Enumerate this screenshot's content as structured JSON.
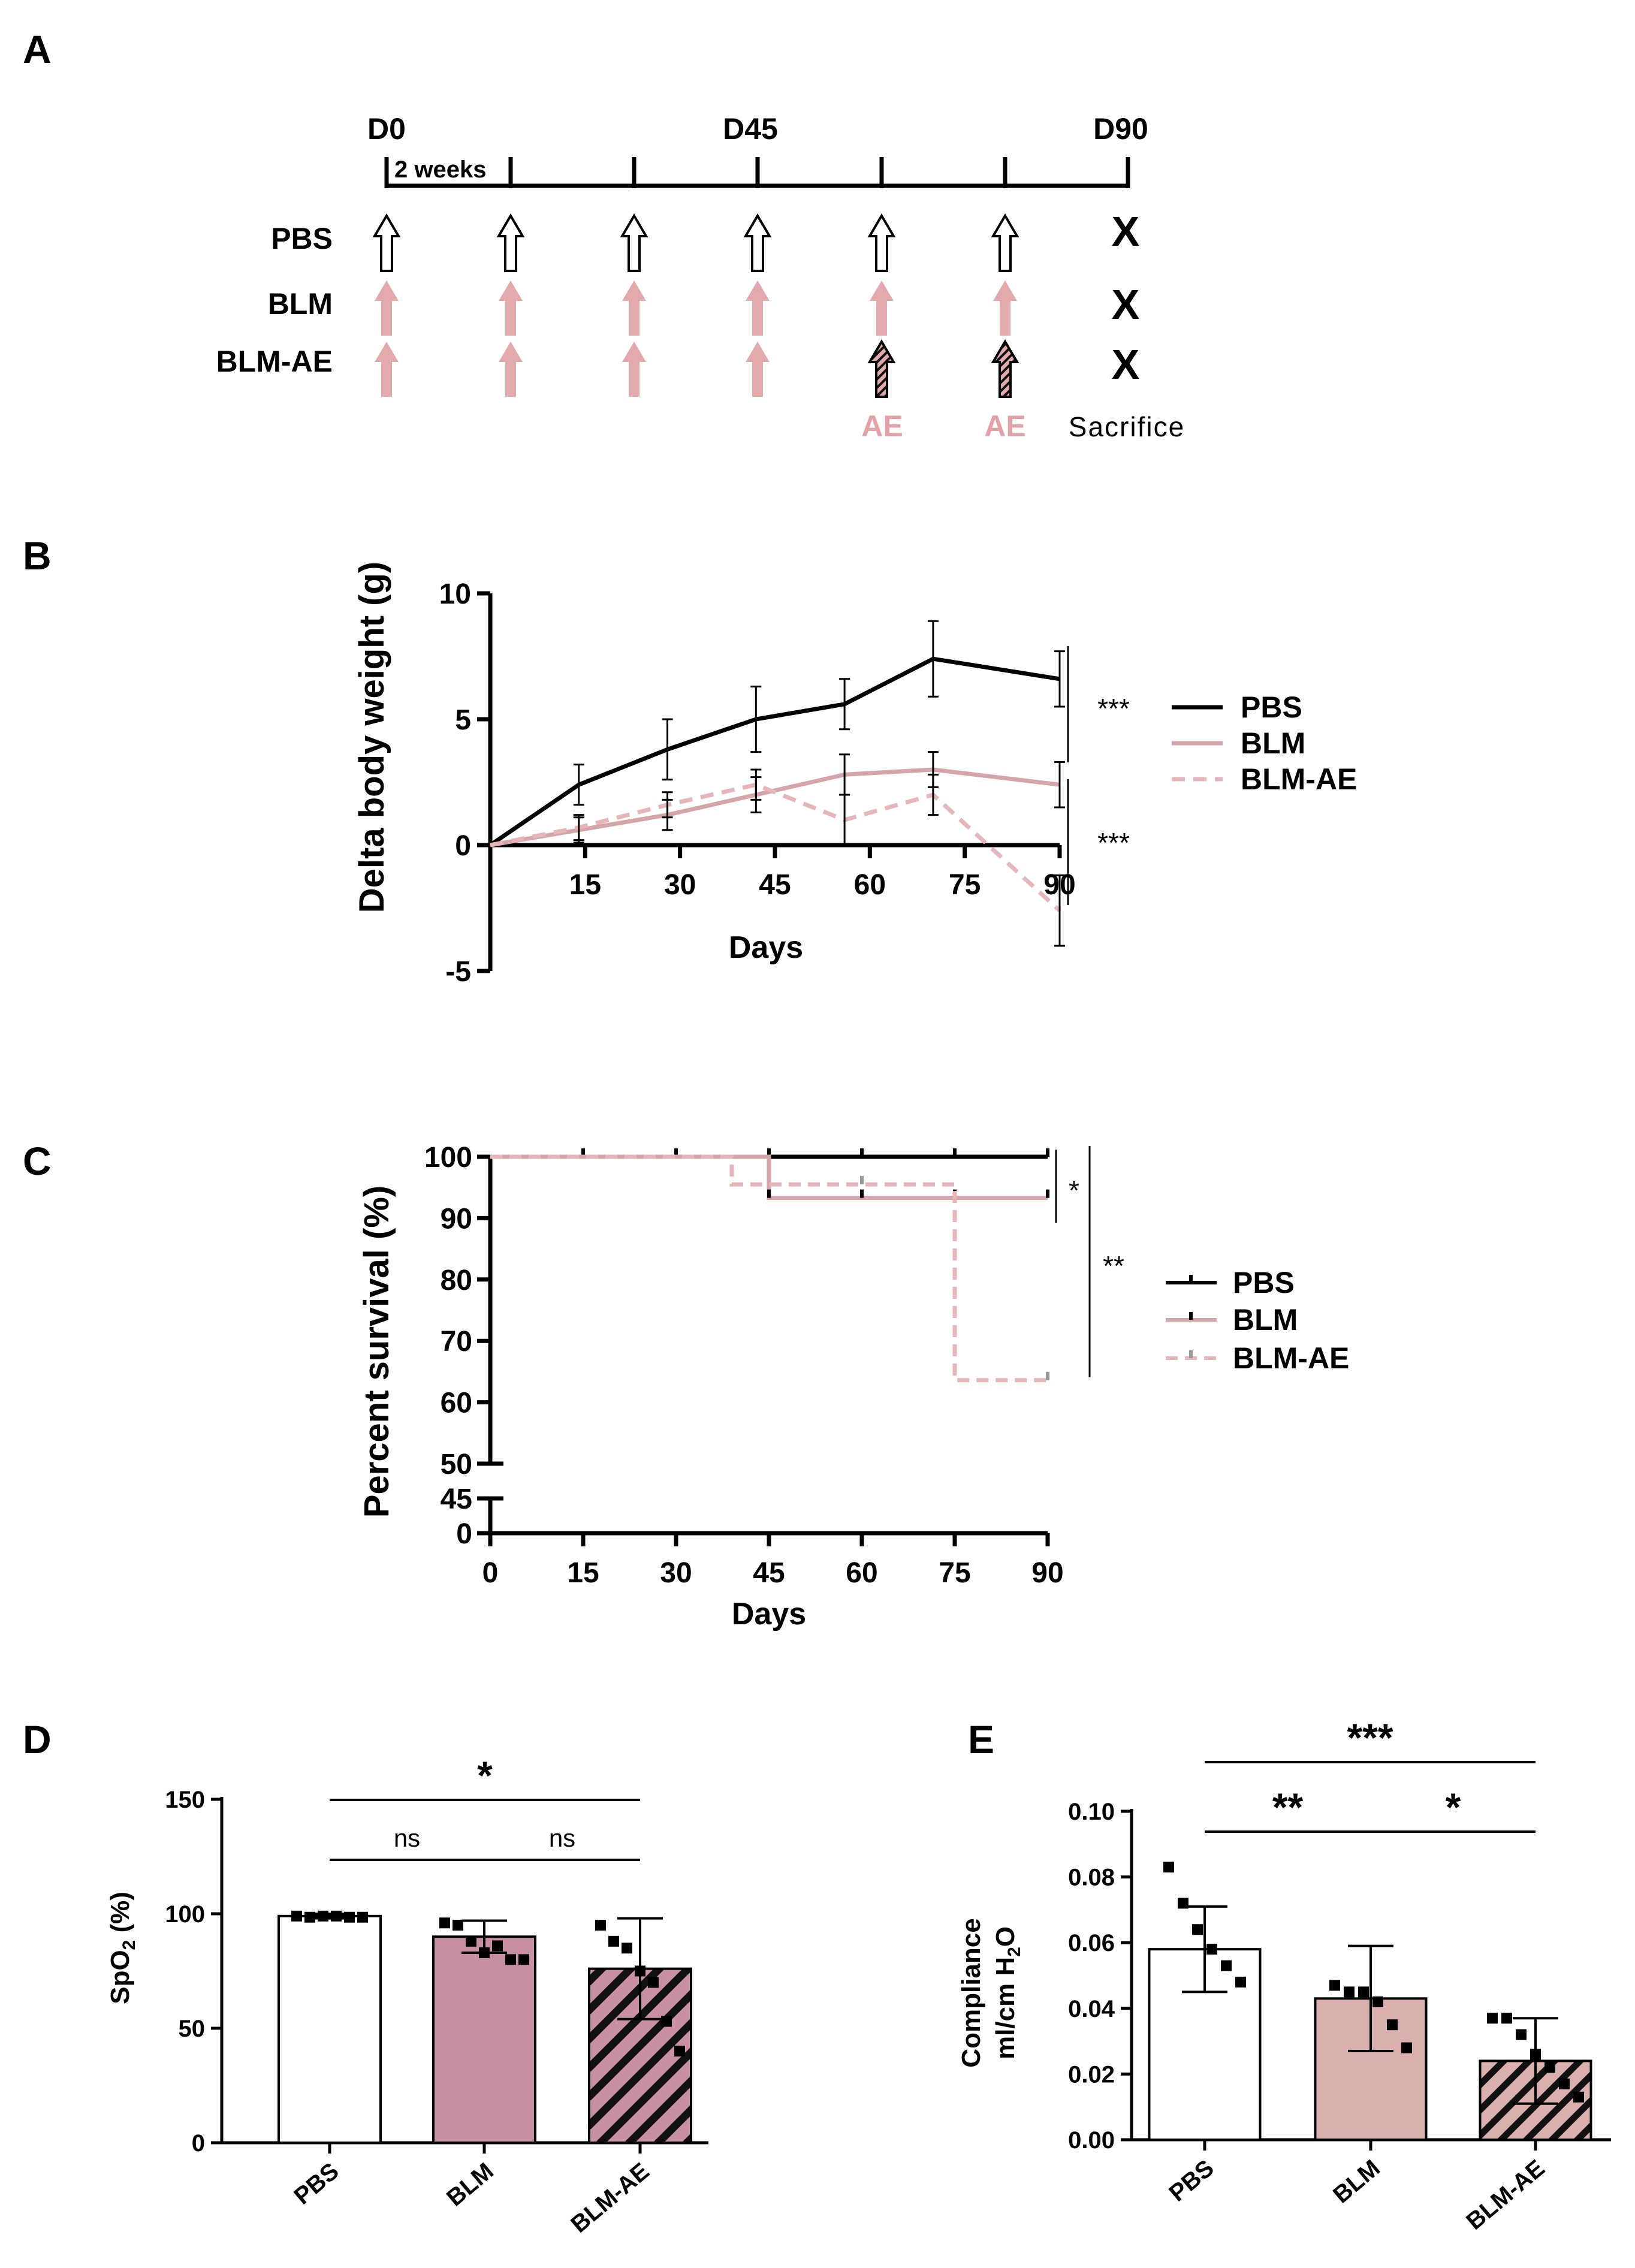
{
  "colors": {
    "pbs": "#000000",
    "blm": "#d6a5a9",
    "blm_ae": "#e6b6b8",
    "blm_bar": "#c98fa3",
    "blm_bar_e": "#d9b0ae",
    "ae_text": "#e2a2a8",
    "arrow_fill": "#e3aaad",
    "tick_grey": "#999999"
  },
  "panels": {
    "a": {
      "label": "A"
    },
    "b": {
      "label": "B"
    },
    "c": {
      "label": "C"
    },
    "d": {
      "label": "D"
    },
    "e": {
      "label": "E"
    }
  },
  "timeline": {
    "day_labels": [
      "D0",
      "D45",
      "D90"
    ],
    "interval_label": "2 weeks",
    "groups": [
      "PBS",
      "BLM",
      "BLM-AE"
    ],
    "ae_label": "AE",
    "sacrifice_label": "Sacrifice",
    "sacrifice_mark": "X"
  },
  "chart_data": [
    {
      "panel": "B",
      "type": "line",
      "xlabel": "Days",
      "ylabel": "Delta body weight  (g)",
      "xlim": [
        0,
        90
      ],
      "ylim": [
        -5,
        10
      ],
      "xticks": [
        15,
        30,
        45,
        60,
        75,
        90
      ],
      "yticks": [
        -5,
        0,
        5,
        10
      ],
      "x": [
        0,
        14,
        28,
        42,
        56,
        70,
        90
      ],
      "series": [
        {
          "name": "PBS",
          "style": "solid",
          "values": [
            0,
            2.4,
            3.8,
            5.0,
            5.6,
            7.4,
            6.6
          ],
          "errors": [
            0,
            0.8,
            1.2,
            1.3,
            1.0,
            1.5,
            1.1
          ]
        },
        {
          "name": "BLM",
          "style": "solid",
          "values": [
            0,
            0.6,
            1.2,
            2.0,
            2.8,
            3.0,
            2.4
          ],
          "errors": [
            0,
            0.5,
            0.6,
            0.7,
            0.8,
            0.7,
            0.9
          ]
        },
        {
          "name": "BLM-AE",
          "style": "dashed",
          "values": [
            0,
            0.7,
            1.6,
            2.4,
            1.0,
            2.0,
            -2.6
          ],
          "errors": [
            0,
            0.5,
            0.5,
            0.6,
            1.0,
            0.8,
            1.4
          ]
        }
      ],
      "significance": [
        "***",
        "***"
      ]
    },
    {
      "panel": "C",
      "type": "line",
      "xlabel": "Days",
      "ylabel": "Percent survival (%)",
      "xlim": [
        0,
        90
      ],
      "xticks": [
        0,
        15,
        30,
        45,
        60,
        75,
        90
      ],
      "yticks": [
        0,
        45,
        50,
        60,
        70,
        80,
        90,
        100
      ],
      "ylim_upper": [
        50,
        100
      ],
      "ylim_lower": [
        0,
        45
      ],
      "series": [
        {
          "name": "PBS",
          "style": "solid",
          "steps": [
            [
              0,
              100
            ],
            [
              90,
              100
            ]
          ],
          "censor_x": [
            15,
            30,
            45,
            60,
            75,
            90
          ]
        },
        {
          "name": "BLM",
          "style": "solid",
          "steps": [
            [
              0,
              100
            ],
            [
              45,
              100
            ],
            [
              45,
              93.3
            ],
            [
              90,
              93.3
            ]
          ],
          "censor_x": [
            45,
            60,
            75,
            90
          ]
        },
        {
          "name": "BLM-AE",
          "style": "dashed",
          "steps": [
            [
              0,
              100
            ],
            [
              39,
              100
            ],
            [
              39,
              95.5
            ],
            [
              75,
              95.5
            ],
            [
              75,
              63.6
            ],
            [
              90,
              63.6
            ]
          ],
          "censor_x": [
            60,
            90
          ]
        }
      ],
      "significance": [
        "*",
        "**"
      ]
    },
    {
      "panel": "D",
      "type": "bar",
      "ylabel": "SpO",
      "ylabel_sub": "2",
      "ylabel_unit": " (%)",
      "ylim": [
        0,
        150
      ],
      "yticks": [
        0,
        50,
        100,
        150
      ],
      "categories": [
        "PBS",
        "BLM",
        "BLM-AE"
      ],
      "values": [
        99,
        90,
        76
      ],
      "errors": [
        1,
        7,
        22
      ],
      "points": [
        [
          99,
          98.5,
          99,
          99,
          98.5,
          98.5
        ],
        [
          96,
          95,
          88,
          83,
          86,
          80,
          80
        ],
        [
          95,
          88,
          85,
          75,
          70,
          53,
          40
        ]
      ],
      "significance": [
        {
          "pair": [
            "PBS",
            "BLM"
          ],
          "label": "ns"
        },
        {
          "pair": [
            "BLM",
            "BLM-AE"
          ],
          "label": "ns"
        },
        {
          "pair": [
            "PBS",
            "BLM-AE"
          ],
          "label": "*"
        }
      ]
    },
    {
      "panel": "E",
      "type": "bar",
      "ylabel": "Compliance",
      "ylabel2": "ml/cm H",
      "ylabel2_sub": "2",
      "ylabel2_end": "O",
      "ylim": [
        0,
        0.1
      ],
      "yticks": [
        "0.00",
        "0.02",
        "0.04",
        "0.06",
        "0.08",
        "0.10"
      ],
      "categories": [
        "PBS",
        "BLM",
        "BLM-AE"
      ],
      "values": [
        0.058,
        0.043,
        0.024
      ],
      "errors": [
        0.013,
        0.016,
        0.013
      ],
      "points": [
        [
          0.083,
          0.072,
          0.064,
          0.058,
          0.053,
          0.048
        ],
        [
          0.047,
          0.045,
          0.045,
          0.042,
          0.035,
          0.028
        ],
        [
          0.037,
          0.037,
          0.032,
          0.026,
          0.022,
          0.017,
          0.013
        ]
      ],
      "significance": [
        {
          "pair": [
            "PBS",
            "BLM"
          ],
          "label": "**"
        },
        {
          "pair": [
            "BLM",
            "BLM-AE"
          ],
          "label": "*"
        },
        {
          "pair": [
            "PBS",
            "BLM-AE"
          ],
          "label": "***"
        }
      ]
    }
  ]
}
